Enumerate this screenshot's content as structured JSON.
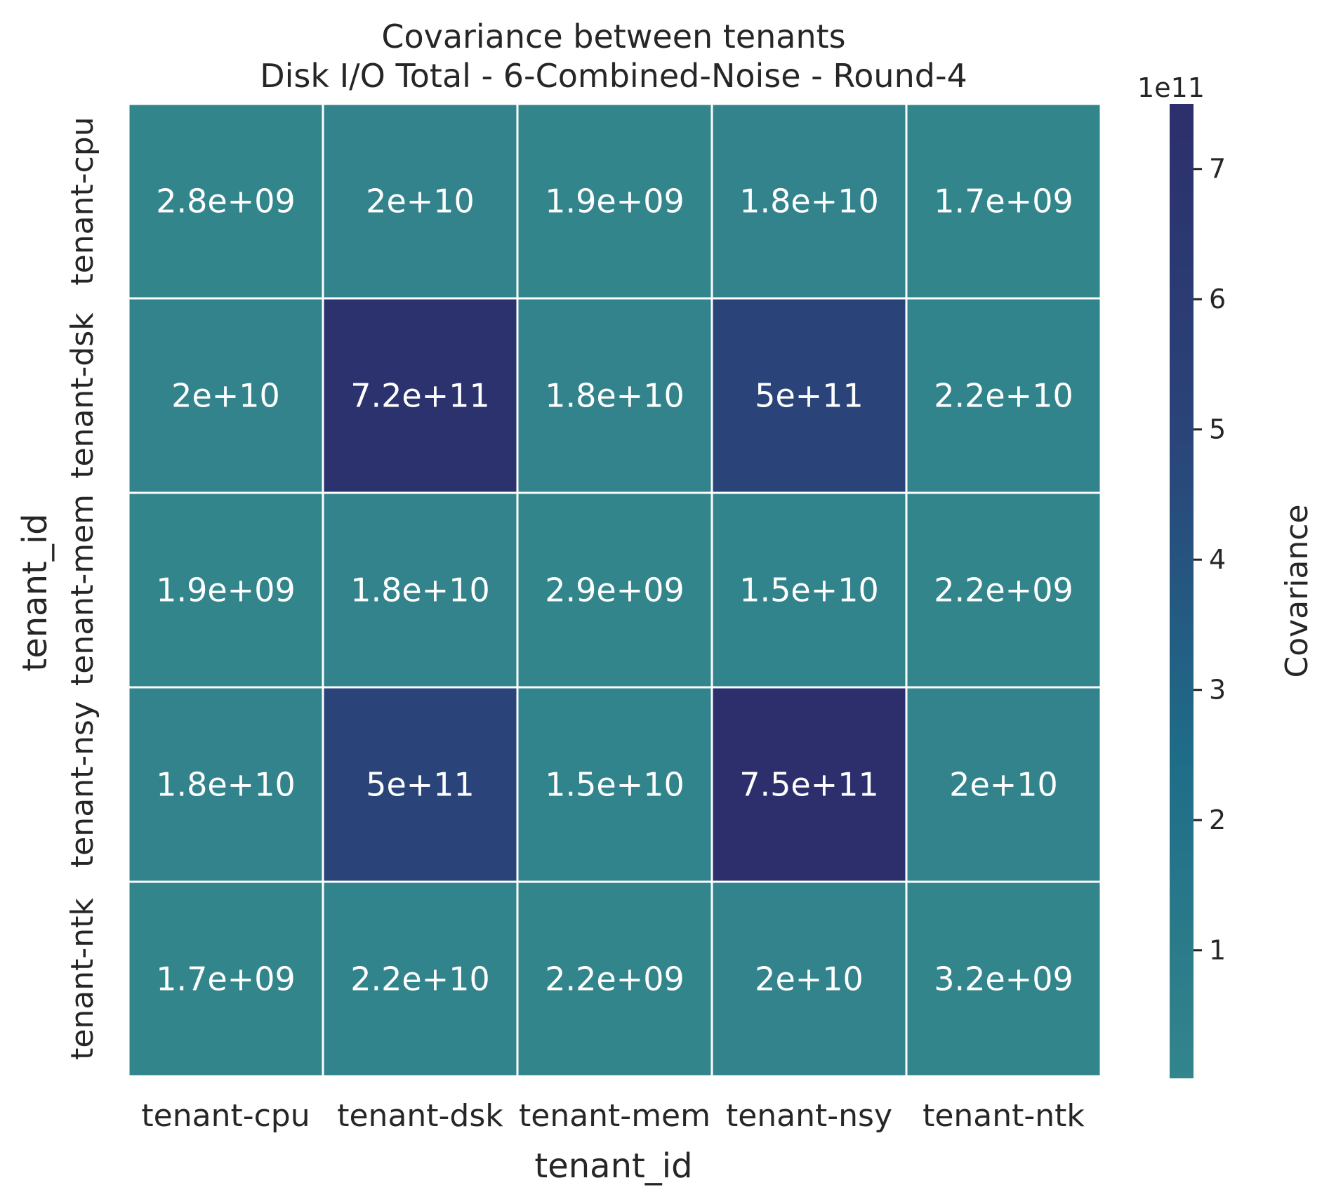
{
  "chart_data": {
    "type": "heatmap",
    "title": "Covariance between tenants",
    "subtitle": "Disk I/O Total - 6-Combined-Noise - Round-4",
    "xlabel": "tenant_id",
    "ylabel": "tenant_id",
    "x_categories": [
      "tenant-cpu",
      "tenant-dsk",
      "tenant-mem",
      "tenant-nsy",
      "tenant-ntk"
    ],
    "y_categories": [
      "tenant-cpu",
      "tenant-dsk",
      "tenant-mem",
      "tenant-nsy",
      "tenant-ntk"
    ],
    "values": [
      [
        2800000000.0,
        20000000000.0,
        1900000000.0,
        18000000000.0,
        1700000000.0
      ],
      [
        20000000000.0,
        720000000000.0,
        18000000000.0,
        500000000000.0,
        22000000000.0
      ],
      [
        1900000000.0,
        18000000000.0,
        2900000000.0,
        15000000000.0,
        2200000000.0
      ],
      [
        18000000000.0,
        500000000000.0,
        15000000000.0,
        750000000000.0,
        20000000000.0
      ],
      [
        1700000000.0,
        22000000000.0,
        2200000000.0,
        20000000000.0,
        3200000000.0
      ]
    ],
    "annotations": [
      [
        "2.8e+09",
        "2e+10",
        "1.9e+09",
        "1.8e+10",
        "1.7e+09"
      ],
      [
        "2e+10",
        "7.2e+11",
        "1.8e+10",
        "5e+11",
        "2.2e+10"
      ],
      [
        "1.9e+09",
        "1.8e+10",
        "2.9e+09",
        "1.5e+10",
        "2.2e+09"
      ],
      [
        "1.8e+10",
        "5e+11",
        "1.5e+10",
        "7.5e+11",
        "2e+10"
      ],
      [
        "1.7e+09",
        "2.2e+10",
        "2.2e+09",
        "2e+10",
        "3.2e+09"
      ]
    ],
    "colorbar": {
      "label": "Covariance",
      "offset_text": "1e11",
      "vmin": 1700000000.0,
      "vmax": 750000000000.0,
      "ticks": [
        1,
        2,
        3,
        4,
        5,
        6,
        7
      ],
      "tick_scale": 100000000000.0,
      "colors": [
        "#33858c",
        "#1f6c88",
        "#2a4479",
        "#2c2f6c"
      ]
    },
    "grid": false,
    "cell_border_color": "#ffffff"
  }
}
